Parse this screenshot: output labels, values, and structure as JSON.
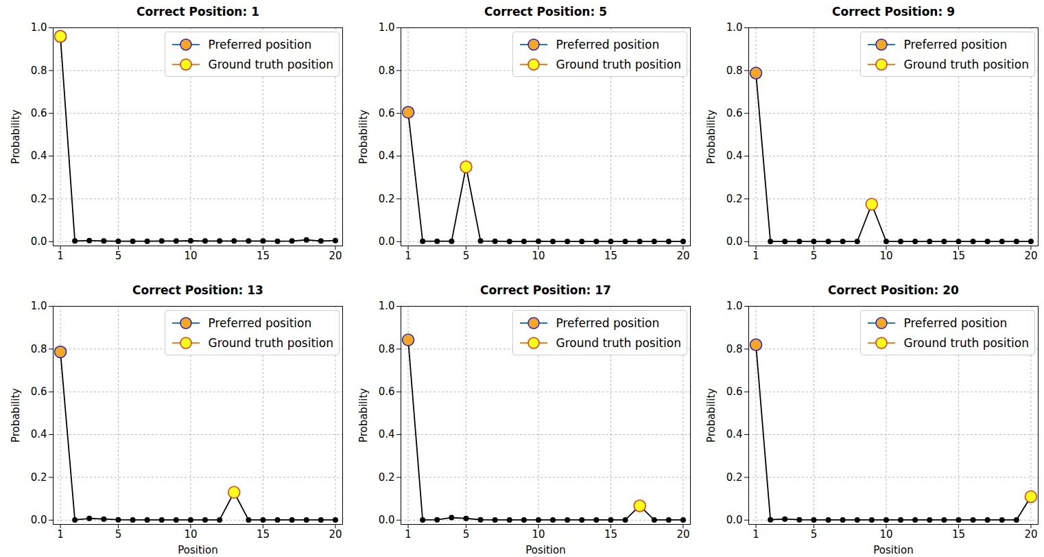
{
  "chart_data": [
    {
      "type": "line",
      "title": "Correct Position: 1",
      "ylabel": "Probability",
      "x": [
        1,
        2,
        3,
        4,
        5,
        6,
        7,
        8,
        9,
        10,
        11,
        12,
        13,
        14,
        15,
        16,
        17,
        18,
        19,
        20
      ],
      "values": [
        0.96,
        0.003,
        0.005,
        0.003,
        0.002,
        0.002,
        0.002,
        0.003,
        0.003,
        0.004,
        0.003,
        0.003,
        0.003,
        0.003,
        0.003,
        0.002,
        0.003,
        0.008,
        0.003,
        0.005
      ],
      "color": "#000000",
      "marker": "circle",
      "markers": [
        {
          "name": "Preferred position",
          "x": 1,
          "color": "#f5a623"
        },
        {
          "name": "Ground truth position",
          "x": 1,
          "color": "#ffff1a"
        }
      ],
      "xlim": [
        0.5,
        20.5
      ],
      "xticks": [
        1,
        5,
        10,
        15,
        20
      ],
      "ylim": [
        -0.02,
        1.0
      ],
      "yticks": [
        {
          "value": 0,
          "label": "0.0"
        },
        {
          "value": 0.2,
          "label": "0.2"
        },
        {
          "value": 0.4,
          "label": "0.4"
        },
        {
          "value": 0.6,
          "label": "0.6"
        },
        {
          "value": 0.8,
          "label": "0.8"
        },
        {
          "value": 1.0,
          "label": "1.0"
        }
      ],
      "grid": true,
      "legend": "upper right"
    },
    {
      "type": "line",
      "title": "Correct Position: 5",
      "ylabel": "Probability",
      "x": [
        1,
        2,
        3,
        4,
        5,
        6,
        7,
        8,
        9,
        10,
        11,
        12,
        13,
        14,
        15,
        16,
        17,
        18,
        19,
        20
      ],
      "values": [
        0.605,
        0.002,
        0.002,
        0.002,
        0.35,
        0.003,
        0.002,
        0.001,
        0.001,
        0.002,
        0.001,
        0.001,
        0.001,
        0.001,
        0.001,
        0.001,
        0.001,
        0.001,
        0.001,
        0.001
      ],
      "color": "#000000",
      "marker": "circle",
      "markers": [
        {
          "name": "Preferred position",
          "x": 1,
          "color": "#f5a623"
        },
        {
          "name": "Ground truth position",
          "x": 5,
          "color": "#ffff1a"
        }
      ],
      "xlim": [
        0.5,
        20.5
      ],
      "xticks": [
        1,
        5,
        10,
        15,
        20
      ],
      "ylim": [
        -0.02,
        1.0
      ],
      "yticks": [
        {
          "value": 0,
          "label": "0.0"
        },
        {
          "value": 0.2,
          "label": "0.2"
        },
        {
          "value": 0.4,
          "label": "0.4"
        },
        {
          "value": 0.6,
          "label": "0.6"
        },
        {
          "value": 0.8,
          "label": "0.8"
        },
        {
          "value": 1.0,
          "label": "1.0"
        }
      ],
      "grid": true,
      "legend": "upper right"
    },
    {
      "type": "line",
      "title": "Correct Position: 9",
      "ylabel": "Probability",
      "x": [
        1,
        2,
        3,
        4,
        5,
        6,
        7,
        8,
        9,
        10,
        11,
        12,
        13,
        14,
        15,
        16,
        17,
        18,
        19,
        20
      ],
      "values": [
        0.788,
        0.001,
        0.001,
        0.001,
        0.001,
        0.001,
        0.001,
        0.001,
        0.175,
        0.001,
        0.001,
        0.001,
        0.001,
        0.001,
        0.001,
        0.001,
        0.001,
        0.001,
        0.001,
        0.001
      ],
      "color": "#000000",
      "marker": "circle",
      "markers": [
        {
          "name": "Preferred position",
          "x": 1,
          "color": "#f5a623"
        },
        {
          "name": "Ground truth position",
          "x": 9,
          "color": "#ffff1a"
        }
      ],
      "xlim": [
        0.5,
        20.5
      ],
      "xticks": [
        1,
        5,
        10,
        15,
        20
      ],
      "ylim": [
        -0.02,
        1.0
      ],
      "yticks": [
        {
          "value": 0,
          "label": "0.0"
        },
        {
          "value": 0.2,
          "label": "0.2"
        },
        {
          "value": 0.4,
          "label": "0.4"
        },
        {
          "value": 0.6,
          "label": "0.6"
        },
        {
          "value": 0.8,
          "label": "0.8"
        },
        {
          "value": 1.0,
          "label": "1.0"
        }
      ],
      "grid": true,
      "legend": "upper right"
    },
    {
      "type": "line",
      "title": "Correct Position: 13",
      "ylabel": "Probability",
      "xlabel": "Position",
      "x": [
        1,
        2,
        3,
        4,
        5,
        6,
        7,
        8,
        9,
        10,
        11,
        12,
        13,
        14,
        15,
        16,
        17,
        18,
        19,
        20
      ],
      "values": [
        0.787,
        0.001,
        0.008,
        0.005,
        0.002,
        0.001,
        0.001,
        0.001,
        0.001,
        0.001,
        0.001,
        0.001,
        0.13,
        0.001,
        0.001,
        0.001,
        0.001,
        0.001,
        0.001,
        0.001
      ],
      "color": "#000000",
      "marker": "circle",
      "markers": [
        {
          "name": "Preferred position",
          "x": 1,
          "color": "#f5a623"
        },
        {
          "name": "Ground truth position",
          "x": 13,
          "color": "#ffff1a"
        }
      ],
      "xlim": [
        0.5,
        20.5
      ],
      "xticks": [
        1,
        5,
        10,
        15,
        20
      ],
      "ylim": [
        -0.02,
        1.0
      ],
      "yticks": [
        {
          "value": 0,
          "label": "0.0"
        },
        {
          "value": 0.2,
          "label": "0.2"
        },
        {
          "value": 0.4,
          "label": "0.4"
        },
        {
          "value": 0.6,
          "label": "0.6"
        },
        {
          "value": 0.8,
          "label": "0.8"
        },
        {
          "value": 1.0,
          "label": "1.0"
        }
      ],
      "grid": true,
      "legend": "upper right"
    },
    {
      "type": "line",
      "title": "Correct Position: 17",
      "ylabel": "Probability",
      "xlabel": "Position",
      "x": [
        1,
        2,
        3,
        4,
        5,
        6,
        7,
        8,
        9,
        10,
        11,
        12,
        13,
        14,
        15,
        16,
        17,
        18,
        19,
        20
      ],
      "values": [
        0.843,
        0.001,
        0.002,
        0.012,
        0.008,
        0.002,
        0.001,
        0.001,
        0.001,
        0.001,
        0.001,
        0.001,
        0.001,
        0.001,
        0.001,
        0.001,
        0.067,
        0.001,
        0.001,
        0.001
      ],
      "color": "#000000",
      "marker": "circle",
      "markers": [
        {
          "name": "Preferred position",
          "x": 1,
          "color": "#f5a623"
        },
        {
          "name": "Ground truth position",
          "x": 17,
          "color": "#ffff1a"
        }
      ],
      "xlim": [
        0.5,
        20.5
      ],
      "xticks": [
        1,
        5,
        10,
        15,
        20
      ],
      "ylim": [
        -0.02,
        1.0
      ],
      "yticks": [
        {
          "value": 0,
          "label": "0.0"
        },
        {
          "value": 0.2,
          "label": "0.2"
        },
        {
          "value": 0.4,
          "label": "0.4"
        },
        {
          "value": 0.6,
          "label": "0.6"
        },
        {
          "value": 0.8,
          "label": "0.8"
        },
        {
          "value": 1.0,
          "label": "1.0"
        }
      ],
      "grid": true,
      "legend": "upper right"
    },
    {
      "type": "line",
      "title": "Correct Position: 20",
      "ylabel": "Probability",
      "xlabel": "Position",
      "x": [
        1,
        2,
        3,
        4,
        5,
        6,
        7,
        8,
        9,
        10,
        11,
        12,
        13,
        14,
        15,
        16,
        17,
        18,
        19,
        20
      ],
      "values": [
        0.82,
        0.002,
        0.005,
        0.002,
        0.001,
        0.001,
        0.001,
        0.001,
        0.001,
        0.001,
        0.001,
        0.001,
        0.001,
        0.001,
        0.001,
        0.001,
        0.001,
        0.001,
        0.001,
        0.11
      ],
      "color": "#000000",
      "marker": "circle",
      "markers": [
        {
          "name": "Preferred position",
          "x": 1,
          "color": "#f5a623"
        },
        {
          "name": "Ground truth position",
          "x": 20,
          "color": "#ffff1a"
        }
      ],
      "xlim": [
        0.5,
        20.5
      ],
      "xticks": [
        1,
        5,
        10,
        15,
        20
      ],
      "ylim": [
        -0.02,
        1.0
      ],
      "yticks": [
        {
          "value": 0,
          "label": "0.0"
        },
        {
          "value": 0.2,
          "label": "0.2"
        },
        {
          "value": 0.4,
          "label": "0.4"
        },
        {
          "value": 0.6,
          "label": "0.6"
        },
        {
          "value": 0.8,
          "label": "0.8"
        },
        {
          "value": 1.0,
          "label": "1.0"
        }
      ],
      "grid": true,
      "legend": "upper right"
    }
  ]
}
